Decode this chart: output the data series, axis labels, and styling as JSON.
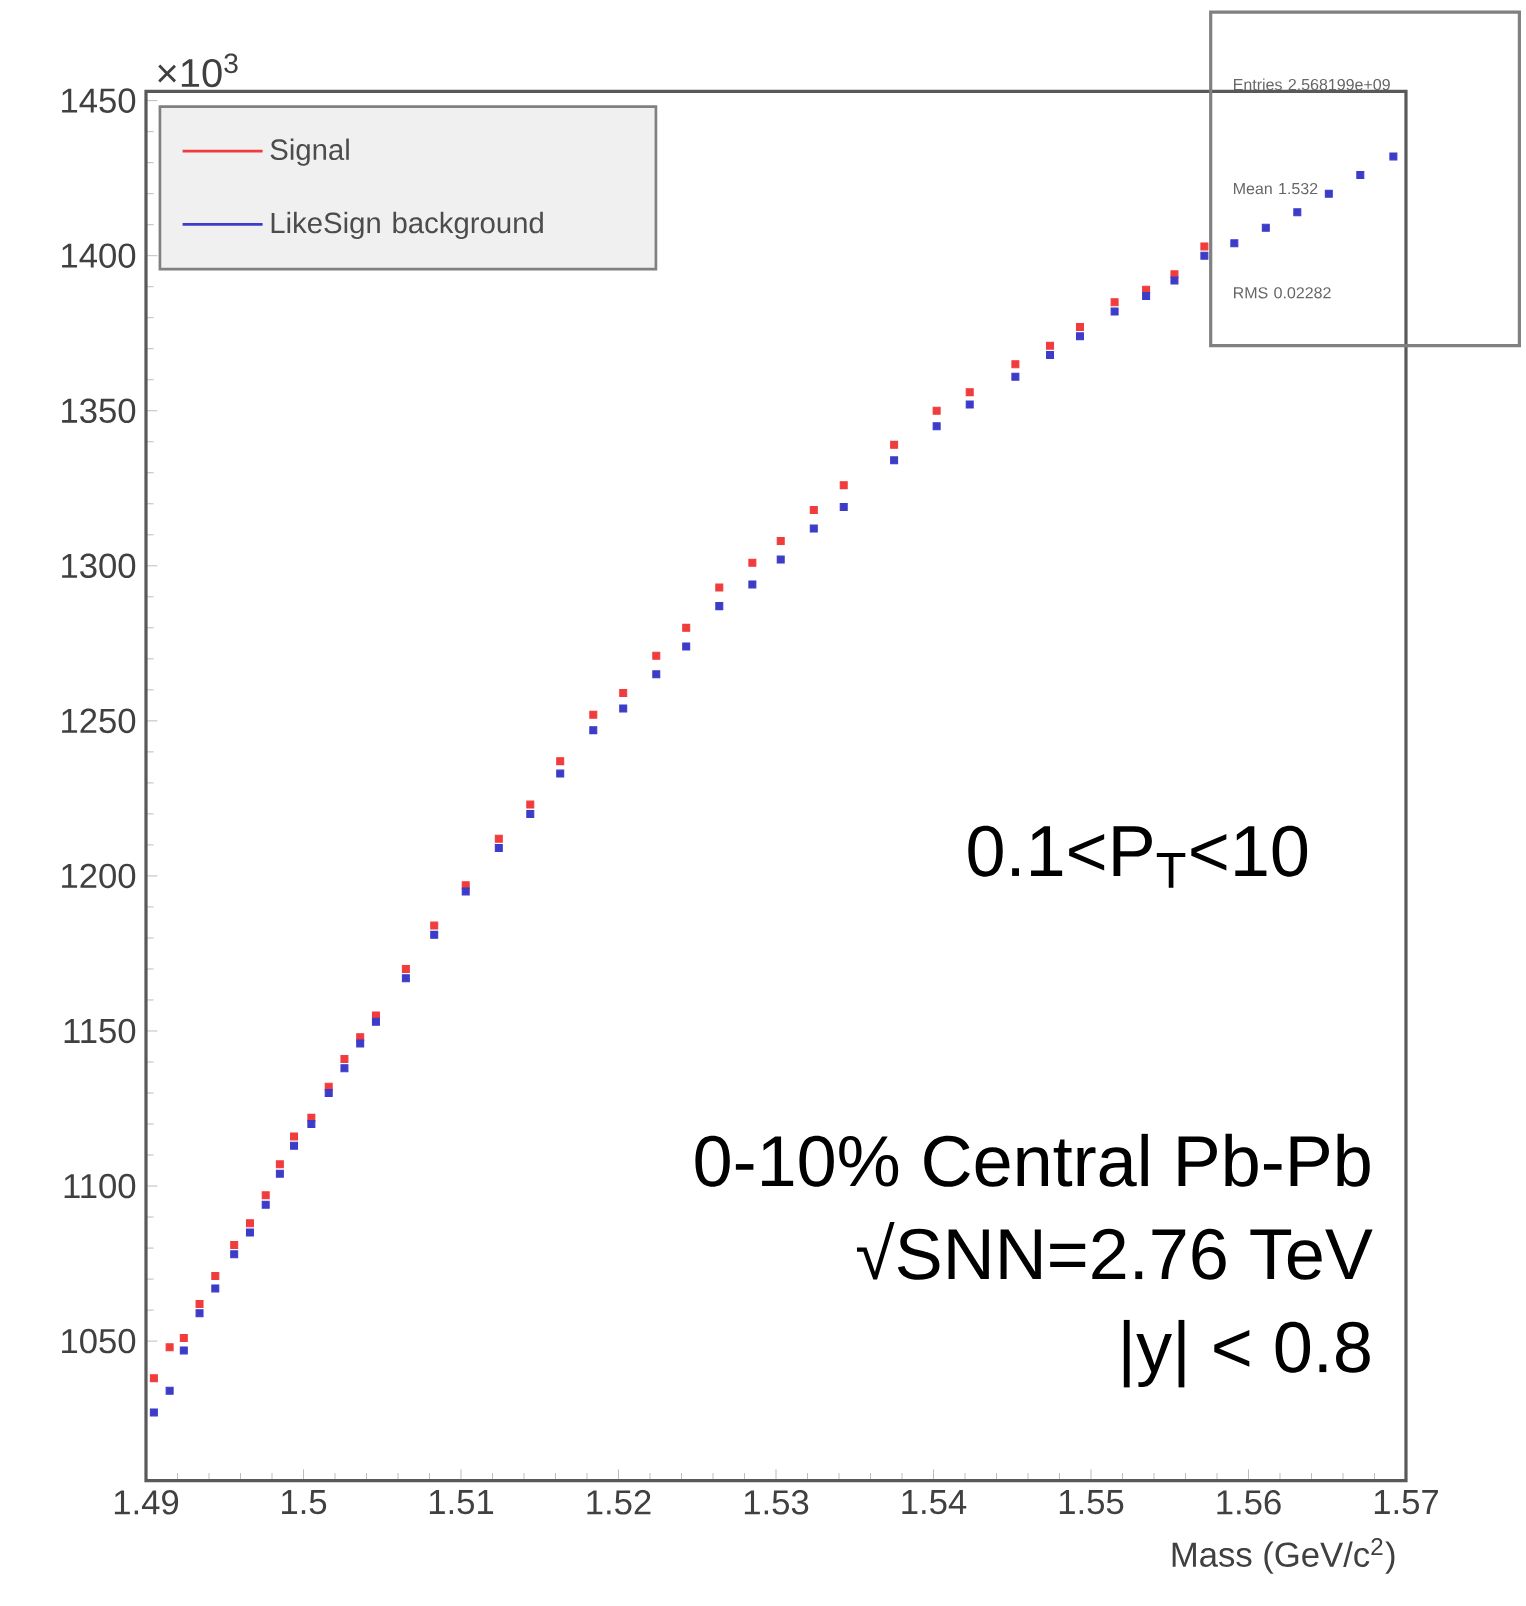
{
  "chart_data": {
    "type": "scatter",
    "xlabel": "Mass (GeV/c$^{2}$)",
    "xlim": [
      1.49,
      1.57
    ],
    "xticks": [
      1.49,
      1.5,
      1.51,
      1.52,
      1.53,
      1.54,
      1.55,
      1.56,
      1.57
    ],
    "ylim": [
      1005,
      1453
    ],
    "yticks": [
      1050,
      1100,
      1150,
      1200,
      1250,
      1300,
      1350,
      1400,
      1450
    ],
    "legend": "top left",
    "marker": "square",
    "grid": false,
    "annotations": [
      "×10$^{3}$",
      "0.1<P$_{T}$<10",
      "0-10% Central Pb-Pb",
      "√SNN=2.76 TeV",
      "|y| < 0.8",
      "Entries   2.568199e+09",
      "Mean   1.532",
      "RMS   0.02282"
    ],
    "series": [
      {
        "name": "Signal",
        "color": "#f03c3c",
        "x": [
          1.4905,
          1.4915,
          1.4924,
          1.4934,
          1.4944,
          1.4956,
          1.4966,
          1.4976,
          1.4985,
          1.4994,
          1.5005,
          1.5016,
          1.5026,
          1.5036,
          1.5046,
          1.5065,
          1.5083,
          1.5103,
          1.5124,
          1.5144,
          1.5163,
          1.5184,
          1.5203,
          1.5224,
          1.5243,
          1.5264,
          1.5285,
          1.5303,
          1.5324,
          1.5343,
          1.5375,
          1.5402,
          1.5423,
          1.5452,
          1.5474,
          1.5493,
          1.5515,
          1.5535,
          1.5553,
          1.5572
        ],
        "values": [
          1038,
          1048,
          1051,
          1062,
          1071,
          1081,
          1088,
          1097,
          1107,
          1116,
          1122,
          1132,
          1141,
          1148,
          1155,
          1170,
          1184,
          1197,
          1212,
          1223,
          1237,
          1252,
          1259,
          1271,
          1280,
          1293,
          1301,
          1308,
          1318,
          1326,
          1339,
          1350,
          1356,
          1365,
          1371,
          1377,
          1385,
          1389,
          1394,
          1403
        ]
      },
      {
        "name": "LikeSign background",
        "color": "#3c3cc8",
        "x": [
          1.4905,
          1.4915,
          1.4924,
          1.4934,
          1.4944,
          1.4956,
          1.4966,
          1.4976,
          1.4985,
          1.4994,
          1.5005,
          1.5016,
          1.5026,
          1.5036,
          1.5046,
          1.5065,
          1.5083,
          1.5103,
          1.5124,
          1.5144,
          1.5163,
          1.5184,
          1.5203,
          1.5224,
          1.5243,
          1.5264,
          1.5285,
          1.5303,
          1.5324,
          1.5343,
          1.5375,
          1.5402,
          1.5423,
          1.5452,
          1.5474,
          1.5493,
          1.5515,
          1.5535,
          1.5553,
          1.5572,
          1.5591,
          1.5611,
          1.5631,
          1.5651,
          1.5671,
          1.5692
        ],
        "values": [
          1027,
          1034,
          1047,
          1059,
          1067,
          1078,
          1085,
          1094,
          1104,
          1113,
          1120,
          1130,
          1138,
          1146,
          1153,
          1167,
          1181,
          1195,
          1209,
          1220,
          1233,
          1247,
          1254,
          1265,
          1274,
          1287,
          1294,
          1302,
          1312,
          1319,
          1334,
          1345,
          1352,
          1361,
          1368,
          1374,
          1382,
          1387,
          1392,
          1400,
          1404,
          1409,
          1414,
          1420,
          1426,
          1432
        ]
      }
    ]
  }
}
